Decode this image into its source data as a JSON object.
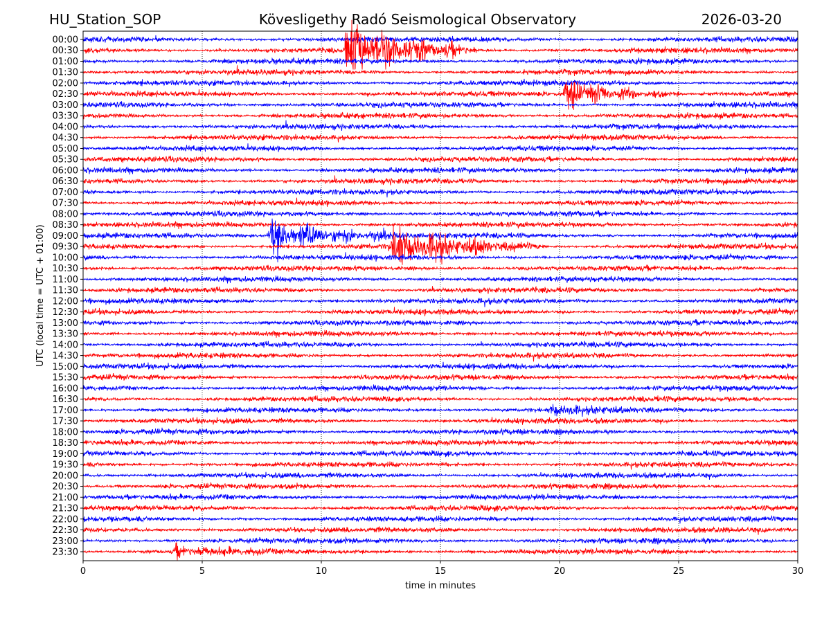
{
  "chart_data": {
    "type": "line",
    "subtype": "helicorder",
    "title_left": "HU_Station_SOP",
    "title_center": "Kövesligethy Radó Seismological Observatory",
    "title_right": "2026-03-20",
    "xlabel": "time in minutes",
    "ylabel": "UTC (local time = UTC + 01:00)",
    "xlim": [
      0,
      30
    ],
    "xticks": [
      "0",
      "5",
      "10",
      "15",
      "20",
      "25",
      "30"
    ],
    "xtick_values": [
      0,
      5,
      10,
      15,
      20,
      25,
      30
    ],
    "grid": "vertical dotted at x ticks",
    "row_labels": [
      "00:00",
      "00:30",
      "01:00",
      "01:30",
      "02:00",
      "02:30",
      "03:00",
      "03:30",
      "04:00",
      "04:30",
      "05:00",
      "05:30",
      "06:00",
      "06:30",
      "07:00",
      "07:30",
      "08:00",
      "08:30",
      "09:00",
      "09:30",
      "10:00",
      "10:30",
      "11:00",
      "11:30",
      "12:00",
      "12:30",
      "13:00",
      "13:30",
      "14:00",
      "14:30",
      "15:00",
      "15:30",
      "16:00",
      "16:30",
      "17:00",
      "17:30",
      "18:00",
      "18:30",
      "19:00",
      "19:30",
      "20:00",
      "20:30",
      "21:00",
      "21:30",
      "22:00",
      "22:30",
      "23:00",
      "23:30"
    ],
    "colors": [
      "#0000ff",
      "#ff0000"
    ],
    "background_noise_amplitude": 1,
    "events": [
      {
        "row": "00:30",
        "start_min": 11.0,
        "end_min": 16.5,
        "peak_amplitude": 10,
        "spike": 28
      },
      {
        "row": "02:30",
        "start_min": 20.1,
        "end_min": 25.0,
        "peak_amplitude": 5,
        "spike": 0
      },
      {
        "row": "09:00",
        "start_min": 7.7,
        "end_min": 13.5,
        "peak_amplitude": 6,
        "spike": 0
      },
      {
        "row": "09:30",
        "start_min": 12.8,
        "end_min": 19.5,
        "peak_amplitude": 6.5,
        "spike": 0
      },
      {
        "row": "17:00",
        "start_min": 19.5,
        "end_min": 23.0,
        "peak_amplitude": 1.6,
        "spike": 0
      },
      {
        "row": "23:30",
        "start_min": 3.7,
        "end_min": 8.0,
        "peak_amplitude": 1.8,
        "spike": 0
      }
    ]
  }
}
